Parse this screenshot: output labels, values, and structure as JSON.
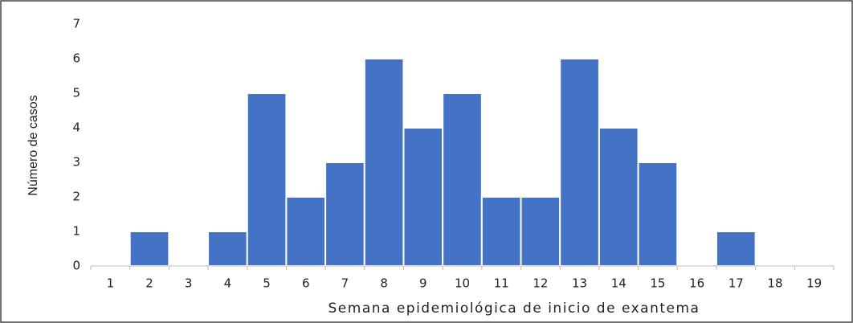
{
  "chart_data": {
    "type": "bar",
    "categories": [
      "1",
      "2",
      "3",
      "4",
      "5",
      "6",
      "7",
      "8",
      "9",
      "10",
      "11",
      "12",
      "13",
      "14",
      "15",
      "16",
      "17",
      "18",
      "19"
    ],
    "values": [
      0,
      1,
      0,
      1,
      5,
      2,
      3,
      6,
      4,
      5,
      2,
      2,
      6,
      4,
      3,
      0,
      1,
      0,
      0
    ],
    "color": "#4472c4",
    "xlabel": "Semana epidemiológica de inicio de exantema",
    "ylabel": "Número de casos",
    "ylim": [
      0,
      7
    ],
    "yticks": [
      0,
      1,
      2,
      3,
      4,
      5,
      6,
      7
    ],
    "grid": false
  }
}
